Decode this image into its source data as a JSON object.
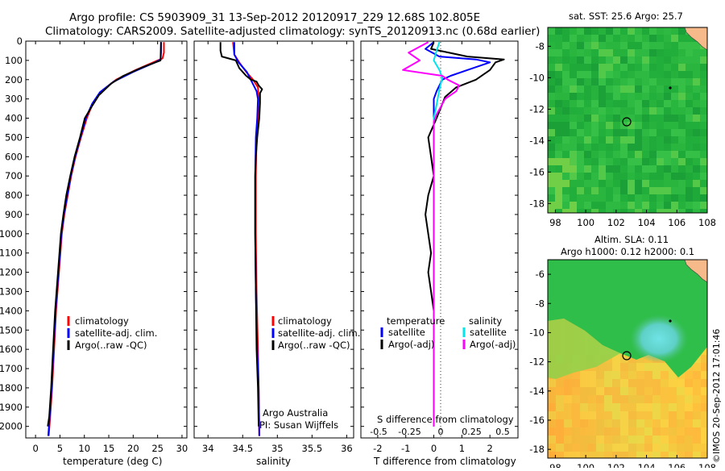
{
  "header": {
    "line1": "Argo profile: CS 5903909_31 13-Sep-2012 20120917_229 12.68S 102.805E",
    "line2": "Climatology: CARS2009. Satellite-adjusted climatology: synTS_20120913.nc (0.68d earlier)"
  },
  "colors": {
    "climatology": "#ff0000",
    "satellite": "#0000ff",
    "argo": "#000000",
    "sal_satellite": "#00e5ee",
    "sal_argo": "#ff00ff"
  },
  "chart_data": [
    {
      "type": "line",
      "id": "temperature",
      "xlabel": "temperature (deg C)",
      "xlim": [
        -2,
        31
      ],
      "ylim": [
        2060,
        0
      ],
      "y_ticks": [
        0,
        100,
        200,
        300,
        400,
        500,
        600,
        700,
        800,
        900,
        1000,
        1100,
        1200,
        1300,
        1400,
        1500,
        1600,
        1700,
        1800,
        1900,
        2000
      ],
      "x_ticks": [
        0,
        5,
        10,
        15,
        20,
        25,
        30
      ],
      "legend": [
        "climatology",
        "satellite-adj. clim.",
        "Argo(..raw -QC)"
      ],
      "series": [
        {
          "name": "climatology",
          "color": "#ff0000",
          "points": [
            [
              26.3,
              5
            ],
            [
              26.3,
              60
            ],
            [
              26.0,
              90
            ],
            [
              25.0,
              100
            ],
            [
              20.5,
              150
            ],
            [
              16.5,
              200
            ],
            [
              13.5,
              260
            ],
            [
              11.8,
              320
            ],
            [
              10.5,
              400
            ],
            [
              9.3,
              500
            ],
            [
              8.2,
              600
            ],
            [
              7.3,
              700
            ],
            [
              6.6,
              800
            ],
            [
              5.9,
              900
            ],
            [
              5.4,
              1000
            ],
            [
              4.8,
              1200
            ],
            [
              4.2,
              1400
            ],
            [
              3.8,
              1600
            ],
            [
              3.4,
              1800
            ],
            [
              3.0,
              1950
            ],
            [
              2.7,
              2050
            ]
          ]
        },
        {
          "name": "satellite-adj. clim.",
          "color": "#0000ff",
          "points": [
            [
              25.7,
              5
            ],
            [
              25.7,
              60
            ],
            [
              25.6,
              95
            ],
            [
              24.5,
              110
            ],
            [
              20.0,
              160
            ],
            [
              16.0,
              210
            ],
            [
              13.2,
              265
            ],
            [
              11.6,
              325
            ],
            [
              10.3,
              400
            ],
            [
              9.2,
              500
            ],
            [
              8.1,
              600
            ],
            [
              7.2,
              700
            ],
            [
              6.5,
              800
            ],
            [
              5.8,
              900
            ],
            [
              5.3,
              1000
            ],
            [
              4.7,
              1200
            ],
            [
              4.1,
              1400
            ],
            [
              3.7,
              1600
            ],
            [
              3.3,
              1800
            ],
            [
              2.9,
              1950
            ],
            [
              2.6,
              2050
            ]
          ]
        },
        {
          "name": "Argo(..raw -QC)",
          "color": "#000000",
          "points": [
            [
              25.7,
              5
            ],
            [
              25.6,
              100
            ],
            [
              22.0,
              135
            ],
            [
              18.0,
              180
            ],
            [
              15.5,
              220
            ],
            [
              13.0,
              280
            ],
            [
              11.5,
              340
            ],
            [
              10.1,
              400
            ],
            [
              9.1,
              500
            ],
            [
              8.0,
              600
            ],
            [
              7.1,
              700
            ],
            [
              6.3,
              800
            ],
            [
              5.7,
              900
            ],
            [
              5.2,
              1000
            ],
            [
              4.6,
              1200
            ],
            [
              4.0,
              1400
            ],
            [
              3.6,
              1600
            ],
            [
              3.2,
              1800
            ],
            [
              2.8,
              1950
            ],
            [
              2.5,
              2000
            ]
          ]
        }
      ]
    },
    {
      "type": "line",
      "id": "salinity",
      "xlabel": "salinity",
      "xlim": [
        33.8,
        36.1
      ],
      "ylim": [
        2060,
        0
      ],
      "x_ticks": [
        34,
        34.5,
        35,
        35.5,
        36
      ],
      "legend": [
        "climatology",
        "satellite-adj. clim.",
        "Argo(..raw -QC)"
      ],
      "annotation": [
        "Argo Australia",
        "PI: Susan Wijffels"
      ],
      "series": [
        {
          "name": "climatology",
          "color": "#ff0000",
          "points": [
            [
              34.36,
              5
            ],
            [
              34.38,
              70
            ],
            [
              34.45,
              110
            ],
            [
              34.55,
              160
            ],
            [
              34.65,
              200
            ],
            [
              34.72,
              240
            ],
            [
              34.73,
              300
            ],
            [
              34.72,
              400
            ],
            [
              34.7,
              500
            ],
            [
              34.69,
              700
            ],
            [
              34.69,
              1000
            ],
            [
              34.7,
              1300
            ],
            [
              34.72,
              1600
            ],
            [
              34.73,
              1800
            ],
            [
              34.74,
              2050
            ]
          ]
        },
        {
          "name": "satellite-adj. clim.",
          "color": "#0000ff",
          "points": [
            [
              34.38,
              5
            ],
            [
              34.38,
              70
            ],
            [
              34.44,
              110
            ],
            [
              34.56,
              160
            ],
            [
              34.63,
              210
            ],
            [
              34.7,
              260
            ],
            [
              34.72,
              300
            ],
            [
              34.71,
              400
            ],
            [
              34.69,
              500
            ],
            [
              34.68,
              700
            ],
            [
              34.68,
              1000
            ],
            [
              34.69,
              1300
            ],
            [
              34.71,
              1600
            ],
            [
              34.73,
              1800
            ],
            [
              34.74,
              2050
            ]
          ]
        },
        {
          "name": "Argo(..raw -QC)",
          "color": "#000000",
          "points": [
            [
              34.18,
              5
            ],
            [
              34.18,
              50
            ],
            [
              34.2,
              80
            ],
            [
              34.4,
              100
            ],
            [
              34.45,
              140
            ],
            [
              34.55,
              180
            ],
            [
              34.62,
              200
            ],
            [
              34.7,
              210
            ],
            [
              34.73,
              230
            ],
            [
              34.78,
              250
            ],
            [
              34.75,
              270
            ],
            [
              34.75,
              320
            ],
            [
              34.74,
              400
            ],
            [
              34.71,
              500
            ],
            [
              34.69,
              600
            ],
            [
              34.68,
              700
            ],
            [
              34.68,
              1000
            ],
            [
              34.69,
              1300
            ],
            [
              34.7,
              1600
            ],
            [
              34.72,
              1800
            ],
            [
              34.73,
              2000
            ]
          ]
        }
      ]
    },
    {
      "type": "line",
      "id": "difference",
      "xlabel": "T difference from climatology",
      "xlabel_top": "S difference from climatology",
      "xlim": [
        -2.6,
        3.0
      ],
      "ylim": [
        2060,
        0
      ],
      "x_ticks": [
        -2,
        -1,
        0,
        1,
        2
      ],
      "s_ticks": [
        "-0.5",
        "-0.25",
        "0",
        "0.25",
        "0.5"
      ],
      "legend_left_title": "temperature",
      "legend_right_title": "salinity",
      "legend_left": [
        "satellite",
        "Argo(-adj)"
      ],
      "legend_right": [
        "satellite",
        "Argo(-adj)"
      ],
      "series": [
        {
          "name": "satellite",
          "color": "#0000ff",
          "points": [
            [
              0.0,
              5
            ],
            [
              -0.3,
              40
            ],
            [
              0.2,
              80
            ],
            [
              1.5,
              95
            ],
            [
              2.0,
              110
            ],
            [
              1.2,
              150
            ],
            [
              0.6,
              180
            ],
            [
              0.3,
              200
            ],
            [
              0.1,
              260
            ],
            [
              0.0,
              300
            ],
            [
              0.0,
              500
            ],
            [
              0.0,
              1000
            ],
            [
              0.0,
              1500
            ],
            [
              0.0,
              2000
            ]
          ]
        },
        {
          "name": "Argo(-adj)",
          "color": "#000000",
          "points": [
            [
              0.0,
              5
            ],
            [
              -0.1,
              40
            ],
            [
              1.2,
              80
            ],
            [
              2.5,
              95
            ],
            [
              2.2,
              110
            ],
            [
              2.0,
              150
            ],
            [
              1.5,
              200
            ],
            [
              0.8,
              240
            ],
            [
              0.4,
              290
            ],
            [
              0.1,
              400
            ],
            [
              -0.2,
              500
            ],
            [
              -0.1,
              600
            ],
            [
              0.0,
              700
            ],
            [
              -0.2,
              800
            ],
            [
              -0.3,
              900
            ],
            [
              -0.2,
              1000
            ],
            [
              -0.1,
              1100
            ],
            [
              -0.2,
              1200
            ],
            [
              -0.1,
              1300
            ],
            [
              0.0,
              1400
            ],
            [
              0.0,
              1500
            ],
            [
              0.0,
              1600
            ],
            [
              0.0,
              1800
            ],
            [
              0.0,
              2000
            ]
          ]
        },
        {
          "name": "satellite",
          "color": "#00e5ee",
          "points": [
            [
              0.2,
              5
            ],
            [
              0.1,
              50
            ],
            [
              0.0,
              100
            ],
            [
              0.2,
              150
            ],
            [
              0.3,
              190
            ],
            [
              0.2,
              250
            ],
            [
              0.1,
              330
            ],
            [
              0.0,
              400
            ],
            [
              0.0,
              500
            ],
            [
              0.0,
              1000
            ],
            [
              0.0,
              1500
            ],
            [
              0.0,
              2000
            ]
          ]
        },
        {
          "name": "Argo(-adj)",
          "color": "#ff00ff",
          "points": [
            [
              -0.2,
              5
            ],
            [
              -0.9,
              60
            ],
            [
              -0.5,
              100
            ],
            [
              -1.1,
              150
            ],
            [
              0.3,
              180
            ],
            [
              0.5,
              200
            ],
            [
              0.9,
              230
            ],
            [
              0.8,
              260
            ],
            [
              0.4,
              300
            ],
            [
              0.1,
              380
            ],
            [
              0.0,
              420
            ],
            [
              0.0,
              500
            ],
            [
              0.0,
              1000
            ],
            [
              0.0,
              1500
            ],
            [
              0.0,
              2000
            ]
          ]
        }
      ]
    },
    {
      "type": "heatmap",
      "id": "sst-map",
      "title": "sat. SST: 25.6 Argo: 25.7",
      "xlim": [
        97.5,
        108
      ],
      "ylim": [
        -18.6,
        -6.8
      ],
      "x_ticks": [
        98,
        100,
        102,
        104,
        106,
        108
      ],
      "y_ticks": [
        -8,
        -10,
        -12,
        -14,
        -16,
        -18
      ],
      "marker": [
        102.8,
        -12.7
      ]
    },
    {
      "type": "heatmap",
      "id": "sla-map",
      "title": "Altim. SLA: 0.11",
      "subtitle": "Argo h1000: 0.12 h2000: 0.1",
      "xlim": [
        97.5,
        108
      ],
      "ylim": [
        -18.6,
        -5.0
      ],
      "x_ticks": [
        98,
        100,
        102,
        104,
        106,
        108
      ],
      "y_ticks": [
        -6,
        -8,
        -10,
        -12,
        -14,
        -16,
        -18
      ],
      "marker": [
        102.8,
        -12.7
      ],
      "side_label": "©IMOS 20-Sep-2012 17:01:46"
    }
  ]
}
